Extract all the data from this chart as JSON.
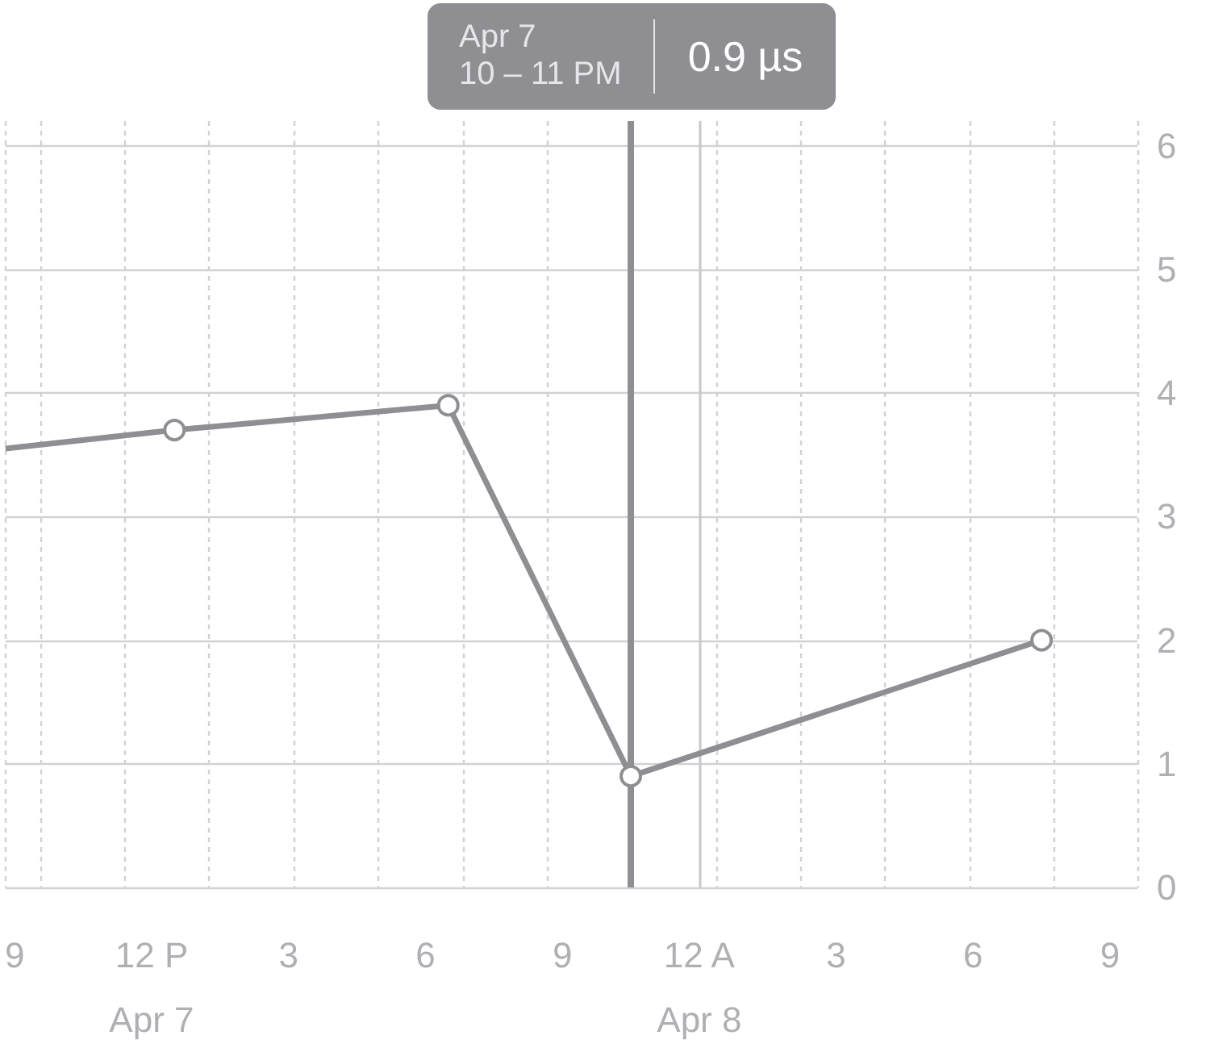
{
  "chart_data": {
    "type": "line",
    "x": [
      "--04-07T08:48",
      "--04-07T12:30",
      "--04-07T18:30",
      "--04-07T22:30",
      "--04-08T07:30"
    ],
    "series": [
      {
        "color": "#8e8e93",
        "values": [
          3.55,
          3.7,
          3.9,
          0.9,
          2.0
        ]
      }
    ],
    "xlim": [
      "--04-07T08:48",
      "--04-08T09:36"
    ],
    "xticks": [
      {
        "value": "--04-07T09:00",
        "label": "9"
      },
      {
        "value": "--04-07T12:00",
        "label": "12 P\nApr 7"
      },
      {
        "value": "--04-07T15:00",
        "label": "3"
      },
      {
        "value": "--04-07T18:00",
        "label": "6"
      },
      {
        "value": "--04-07T21:00",
        "label": "9"
      },
      {
        "value": "--04-08T00:00",
        "label": "12 A\nApr 8"
      },
      {
        "value": "--04-08T03:00",
        "label": "3"
      },
      {
        "value": "--04-08T06:00",
        "label": "6"
      },
      {
        "value": "--04-08T09:00",
        "label": "9"
      }
    ],
    "ylim": [
      0,
      6.2
    ],
    "yticks": [
      0,
      1,
      2,
      3,
      4,
      5,
      6
    ],
    "grid": true,
    "marker": "circle",
    "line_style": "solid",
    "ref_lines": [
      {
        "axis": "x",
        "value": "--04-08T00:00",
        "color": "#c7c7cc"
      },
      {
        "axis": "x",
        "value": "--04-07T22:30",
        "color": "#8e8e93"
      }
    ],
    "annotations": [
      "Apr 7\n10 – 11 PM",
      "0.9 µs"
    ]
  }
}
